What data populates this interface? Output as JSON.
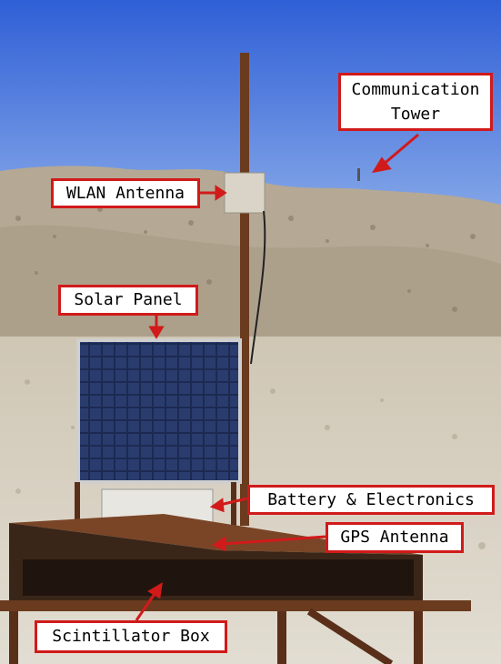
{
  "photo": {
    "description_icon": "photo-scene",
    "colors": {
      "sky_top": "#2f5fd6",
      "sky_bottom": "#7ea2e6",
      "hill": "#b9ac97",
      "ground": "#d8d2c4",
      "pole": "#6a3b1f",
      "box": "#5a2f1a",
      "panel": "#1e2a4a",
      "label_border": "#d11a1a",
      "arrow": "#d11a1a"
    }
  },
  "labels": {
    "communication_tower": [
      "Communication",
      "Tower"
    ],
    "wlan_antenna": "WLAN Antenna",
    "solar_panel": "Solar Panel",
    "battery_electronics": "Battery & Electronics",
    "gps_antenna": "GPS Antenna",
    "scintillator_box": "Scintillator Box"
  }
}
